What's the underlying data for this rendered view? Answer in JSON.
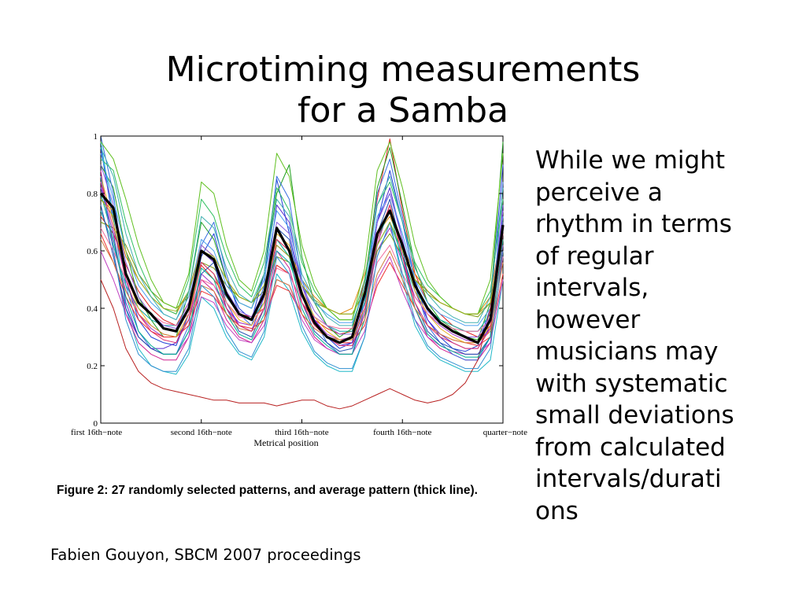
{
  "slide": {
    "title_lines": [
      "Microtiming measurements",
      "for a Samba"
    ],
    "body_lines": [
      "While we might",
      "perceive a",
      "rhythm in terms",
      "of regular",
      "intervals,",
      "however",
      "musicians may",
      "with systematic",
      "small deviations",
      "from calculated",
      "intervals/durati",
      "ons"
    ],
    "credit": "Fabien Gouyon, SBCM 2007 proceedings"
  },
  "figure": {
    "caption": "Figure 2: 27 randomly selected patterns, and average pattern (thick line)."
  },
  "chart_data": {
    "type": "line",
    "title": "",
    "xlabel": "Metrical position",
    "ylabel": "",
    "ylim": [
      0,
      1
    ],
    "xlim": [
      0,
      16
    ],
    "grid": false,
    "legend": "none",
    "y_ticks": [
      "0",
      "0.2",
      "0.4",
      "0.6",
      "0.8",
      "1"
    ],
    "x_ticks": [
      {
        "x": 0,
        "label": "first 16th−note"
      },
      {
        "x": 4,
        "label": "second  16th−note"
      },
      {
        "x": 8,
        "label": "third  16th−note"
      },
      {
        "x": 12,
        "label": "fourth  16th−note"
      },
      {
        "x": 16,
        "label": "quarter−note"
      }
    ],
    "x": [
      0,
      0.5,
      1,
      1.5,
      2,
      2.5,
      3,
      3.5,
      4,
      4.5,
      5,
      5.5,
      6,
      6.5,
      7,
      7.5,
      8,
      8.5,
      9,
      9.5,
      10,
      10.5,
      11,
      11.5,
      12,
      12.5,
      13,
      13.5,
      14,
      14.5,
      15,
      15.5,
      16
    ],
    "average": {
      "color": "#000000",
      "values": [
        0.8,
        0.75,
        0.52,
        0.42,
        0.38,
        0.33,
        0.32,
        0.4,
        0.6,
        0.57,
        0.45,
        0.38,
        0.36,
        0.45,
        0.68,
        0.6,
        0.45,
        0.35,
        0.3,
        0.28,
        0.3,
        0.45,
        0.66,
        0.74,
        0.62,
        0.48,
        0.4,
        0.35,
        0.32,
        0.3,
        0.28,
        0.36,
        0.69
      ]
    },
    "series": [
      {
        "color": "#1f3fd6",
        "values": [
          0.96,
          0.7,
          0.5,
          0.36,
          0.3,
          0.28,
          0.27,
          0.38,
          0.58,
          0.66,
          0.5,
          0.4,
          0.36,
          0.52,
          0.85,
          0.66,
          0.45,
          0.35,
          0.3,
          0.26,
          0.28,
          0.42,
          0.7,
          0.88,
          0.7,
          0.5,
          0.36,
          0.3,
          0.26,
          0.25,
          0.27,
          0.4,
          0.9
        ]
      },
      {
        "color": "#e02020",
        "values": [
          0.72,
          0.66,
          0.55,
          0.46,
          0.4,
          0.36,
          0.34,
          0.42,
          0.55,
          0.5,
          0.44,
          0.38,
          0.37,
          0.4,
          0.55,
          0.52,
          0.42,
          0.36,
          0.33,
          0.31,
          0.32,
          0.5,
          0.78,
          0.99,
          0.74,
          0.52,
          0.42,
          0.38,
          0.34,
          0.32,
          0.3,
          0.34,
          0.6
        ]
      },
      {
        "color": "#22a022",
        "values": [
          0.9,
          0.82,
          0.6,
          0.44,
          0.36,
          0.3,
          0.3,
          0.46,
          0.7,
          0.64,
          0.5,
          0.42,
          0.4,
          0.52,
          0.8,
          0.9,
          0.58,
          0.42,
          0.34,
          0.3,
          0.33,
          0.48,
          0.82,
          0.96,
          0.76,
          0.55,
          0.42,
          0.36,
          0.33,
          0.3,
          0.29,
          0.42,
          0.98
        ]
      },
      {
        "color": "#9b30c8",
        "values": [
          0.84,
          0.62,
          0.46,
          0.38,
          0.33,
          0.3,
          0.3,
          0.36,
          0.52,
          0.48,
          0.4,
          0.35,
          0.34,
          0.42,
          0.62,
          0.58,
          0.44,
          0.36,
          0.31,
          0.29,
          0.3,
          0.4,
          0.6,
          0.68,
          0.56,
          0.44,
          0.38,
          0.34,
          0.31,
          0.29,
          0.28,
          0.33,
          0.62
        ]
      },
      {
        "color": "#20b8c8",
        "values": [
          0.98,
          0.72,
          0.4,
          0.26,
          0.2,
          0.18,
          0.17,
          0.24,
          0.44,
          0.4,
          0.3,
          0.24,
          0.22,
          0.3,
          0.52,
          0.46,
          0.32,
          0.24,
          0.2,
          0.18,
          0.18,
          0.3,
          0.58,
          0.7,
          0.5,
          0.34,
          0.26,
          0.22,
          0.2,
          0.18,
          0.18,
          0.22,
          0.5
        ]
      },
      {
        "color": "#e08a10",
        "values": [
          0.78,
          0.74,
          0.58,
          0.5,
          0.44,
          0.4,
          0.38,
          0.46,
          0.62,
          0.58,
          0.5,
          0.44,
          0.42,
          0.48,
          0.64,
          0.6,
          0.5,
          0.44,
          0.4,
          0.38,
          0.4,
          0.52,
          0.66,
          0.72,
          0.62,
          0.52,
          0.46,
          0.42,
          0.4,
          0.38,
          0.38,
          0.44,
          0.7
        ]
      },
      {
        "color": "#d02090",
        "values": [
          0.88,
          0.6,
          0.38,
          0.28,
          0.24,
          0.22,
          0.22,
          0.3,
          0.5,
          0.46,
          0.36,
          0.3,
          0.28,
          0.36,
          0.6,
          0.54,
          0.38,
          0.3,
          0.26,
          0.24,
          0.24,
          0.36,
          0.62,
          0.76,
          0.58,
          0.4,
          0.3,
          0.26,
          0.24,
          0.22,
          0.22,
          0.28,
          0.58
        ]
      },
      {
        "color": "#7a9a10",
        "values": [
          0.7,
          0.68,
          0.62,
          0.52,
          0.46,
          0.42,
          0.4,
          0.44,
          0.56,
          0.54,
          0.48,
          0.44,
          0.42,
          0.46,
          0.58,
          0.56,
          0.48,
          0.42,
          0.4,
          0.38,
          0.38,
          0.46,
          0.6,
          0.66,
          0.58,
          0.5,
          0.46,
          0.42,
          0.4,
          0.38,
          0.37,
          0.42,
          0.64
        ]
      },
      {
        "color": "#3a70e0",
        "values": [
          1.0,
          0.8,
          0.48,
          0.32,
          0.26,
          0.24,
          0.24,
          0.34,
          0.62,
          0.7,
          0.52,
          0.38,
          0.34,
          0.48,
          0.86,
          0.78,
          0.5,
          0.36,
          0.28,
          0.24,
          0.24,
          0.4,
          0.8,
          0.92,
          0.72,
          0.48,
          0.34,
          0.28,
          0.24,
          0.22,
          0.22,
          0.3,
          0.84
        ]
      },
      {
        "color": "#f03030",
        "values": [
          0.66,
          0.56,
          0.44,
          0.36,
          0.32,
          0.3,
          0.3,
          0.34,
          0.46,
          0.44,
          0.38,
          0.34,
          0.33,
          0.36,
          0.48,
          0.46,
          0.38,
          0.33,
          0.3,
          0.28,
          0.28,
          0.34,
          0.48,
          0.56,
          0.48,
          0.4,
          0.34,
          0.31,
          0.29,
          0.28,
          0.27,
          0.3,
          0.52
        ]
      },
      {
        "color": "#30c060",
        "values": [
          0.92,
          0.88,
          0.7,
          0.56,
          0.46,
          0.4,
          0.38,
          0.5,
          0.78,
          0.72,
          0.58,
          0.48,
          0.44,
          0.56,
          0.82,
          0.74,
          0.56,
          0.46,
          0.4,
          0.36,
          0.36,
          0.5,
          0.76,
          0.84,
          0.7,
          0.56,
          0.48,
          0.44,
          0.4,
          0.38,
          0.38,
          0.46,
          0.78
        ]
      },
      {
        "color": "#5a2ad0",
        "values": [
          0.82,
          0.66,
          0.42,
          0.3,
          0.26,
          0.26,
          0.28,
          0.38,
          0.6,
          0.56,
          0.42,
          0.34,
          0.32,
          0.44,
          0.76,
          0.7,
          0.48,
          0.36,
          0.3,
          0.27,
          0.28,
          0.4,
          0.7,
          0.82,
          0.64,
          0.46,
          0.36,
          0.31,
          0.28,
          0.26,
          0.26,
          0.34,
          0.76
        ]
      },
      {
        "color": "#10a8a8",
        "values": [
          0.74,
          0.62,
          0.48,
          0.4,
          0.36,
          0.34,
          0.34,
          0.4,
          0.56,
          0.52,
          0.44,
          0.38,
          0.36,
          0.42,
          0.6,
          0.56,
          0.44,
          0.37,
          0.34,
          0.32,
          0.32,
          0.42,
          0.62,
          0.7,
          0.58,
          0.46,
          0.4,
          0.36,
          0.34,
          0.32,
          0.32,
          0.38,
          0.66
        ]
      },
      {
        "color": "#e8b020",
        "values": [
          0.86,
          0.7,
          0.52,
          0.4,
          0.34,
          0.31,
          0.3,
          0.38,
          0.56,
          0.52,
          0.42,
          0.36,
          0.34,
          0.42,
          0.66,
          0.62,
          0.46,
          0.37,
          0.32,
          0.29,
          0.29,
          0.4,
          0.64,
          0.76,
          0.62,
          0.46,
          0.38,
          0.33,
          0.3,
          0.28,
          0.28,
          0.34,
          0.68
        ]
      },
      {
        "color": "#c040c0",
        "values": [
          0.6,
          0.5,
          0.38,
          0.3,
          0.26,
          0.24,
          0.24,
          0.3,
          0.44,
          0.42,
          0.34,
          0.29,
          0.28,
          0.34,
          0.5,
          0.48,
          0.36,
          0.29,
          0.26,
          0.24,
          0.24,
          0.32,
          0.5,
          0.58,
          0.46,
          0.36,
          0.3,
          0.27,
          0.25,
          0.24,
          0.24,
          0.28,
          0.5
        ]
      },
      {
        "color": "#4aa0f0",
        "values": [
          0.94,
          0.78,
          0.6,
          0.48,
          0.42,
          0.38,
          0.36,
          0.44,
          0.64,
          0.6,
          0.48,
          0.42,
          0.4,
          0.5,
          0.74,
          0.68,
          0.5,
          0.42,
          0.38,
          0.35,
          0.35,
          0.46,
          0.72,
          0.8,
          0.66,
          0.5,
          0.42,
          0.38,
          0.36,
          0.34,
          0.34,
          0.4,
          0.72
        ]
      },
      {
        "color": "#b82020",
        "values": [
          0.5,
          0.4,
          0.26,
          0.18,
          0.14,
          0.12,
          0.11,
          0.1,
          0.09,
          0.08,
          0.08,
          0.07,
          0.07,
          0.07,
          0.06,
          0.07,
          0.08,
          0.08,
          0.06,
          0.05,
          0.06,
          0.08,
          0.1,
          0.12,
          0.1,
          0.08,
          0.07,
          0.08,
          0.1,
          0.14,
          0.22,
          0.4,
          0.7
        ]
      },
      {
        "color": "#60c020",
        "values": [
          0.98,
          0.92,
          0.78,
          0.62,
          0.5,
          0.42,
          0.4,
          0.52,
          0.84,
          0.8,
          0.62,
          0.5,
          0.46,
          0.6,
          0.94,
          0.86,
          0.62,
          0.48,
          0.4,
          0.36,
          0.36,
          0.54,
          0.88,
          0.98,
          0.82,
          0.62,
          0.5,
          0.44,
          0.4,
          0.38,
          0.38,
          0.5,
          0.94
        ]
      },
      {
        "color": "#2050b0",
        "values": [
          0.76,
          0.58,
          0.4,
          0.3,
          0.26,
          0.24,
          0.24,
          0.32,
          0.52,
          0.56,
          0.4,
          0.32,
          0.3,
          0.4,
          0.68,
          0.64,
          0.42,
          0.32,
          0.28,
          0.25,
          0.26,
          0.38,
          0.66,
          0.78,
          0.6,
          0.42,
          0.32,
          0.28,
          0.26,
          0.24,
          0.24,
          0.3,
          0.7
        ]
      },
      {
        "color": "#f070a0",
        "values": [
          0.68,
          0.6,
          0.5,
          0.42,
          0.38,
          0.35,
          0.34,
          0.38,
          0.5,
          0.48,
          0.42,
          0.37,
          0.36,
          0.4,
          0.54,
          0.52,
          0.42,
          0.37,
          0.34,
          0.33,
          0.33,
          0.4,
          0.56,
          0.62,
          0.52,
          0.44,
          0.38,
          0.35,
          0.33,
          0.32,
          0.32,
          0.36,
          0.58
        ]
      },
      {
        "color": "#00b090",
        "values": [
          0.8,
          0.64,
          0.44,
          0.32,
          0.27,
          0.24,
          0.24,
          0.32,
          0.54,
          0.5,
          0.38,
          0.31,
          0.29,
          0.38,
          0.64,
          0.58,
          0.4,
          0.31,
          0.27,
          0.24,
          0.24,
          0.36,
          0.64,
          0.74,
          0.56,
          0.4,
          0.31,
          0.27,
          0.25,
          0.23,
          0.23,
          0.3,
          0.64
        ]
      },
      {
        "color": "#8a60e0",
        "values": [
          0.9,
          0.76,
          0.56,
          0.44,
          0.38,
          0.34,
          0.33,
          0.42,
          0.62,
          0.58,
          0.46,
          0.39,
          0.37,
          0.46,
          0.7,
          0.66,
          0.48,
          0.39,
          0.34,
          0.31,
          0.31,
          0.44,
          0.7,
          0.8,
          0.64,
          0.48,
          0.39,
          0.35,
          0.32,
          0.3,
          0.3,
          0.37,
          0.74
        ]
      },
      {
        "color": "#d08040",
        "values": [
          0.64,
          0.56,
          0.46,
          0.38,
          0.34,
          0.31,
          0.3,
          0.36,
          0.48,
          0.46,
          0.38,
          0.33,
          0.32,
          0.36,
          0.5,
          0.48,
          0.38,
          0.33,
          0.3,
          0.29,
          0.29,
          0.36,
          0.52,
          0.6,
          0.5,
          0.4,
          0.34,
          0.31,
          0.29,
          0.28,
          0.28,
          0.32,
          0.56
        ]
      },
      {
        "color": "#3090d0",
        "values": [
          0.86,
          0.6,
          0.36,
          0.24,
          0.2,
          0.18,
          0.18,
          0.26,
          0.48,
          0.44,
          0.32,
          0.25,
          0.23,
          0.32,
          0.58,
          0.52,
          0.34,
          0.25,
          0.21,
          0.19,
          0.19,
          0.3,
          0.58,
          0.7,
          0.52,
          0.36,
          0.27,
          0.23,
          0.21,
          0.19,
          0.19,
          0.26,
          0.6
        ]
      },
      {
        "color": "#a0b020",
        "values": [
          0.78,
          0.72,
          0.6,
          0.5,
          0.44,
          0.4,
          0.39,
          0.46,
          0.6,
          0.58,
          0.5,
          0.44,
          0.42,
          0.48,
          0.62,
          0.58,
          0.48,
          0.43,
          0.4,
          0.38,
          0.38,
          0.46,
          0.62,
          0.7,
          0.6,
          0.5,
          0.45,
          0.42,
          0.4,
          0.38,
          0.38,
          0.42,
          0.66
        ]
      },
      {
        "color": "#e03070",
        "values": [
          0.84,
          0.68,
          0.5,
          0.38,
          0.32,
          0.29,
          0.28,
          0.36,
          0.56,
          0.52,
          0.4,
          0.34,
          0.32,
          0.4,
          0.64,
          0.6,
          0.42,
          0.34,
          0.3,
          0.27,
          0.27,
          0.38,
          0.64,
          0.76,
          0.58,
          0.42,
          0.34,
          0.3,
          0.28,
          0.26,
          0.26,
          0.33,
          0.66
        ]
      },
      {
        "color": "#40b0b0",
        "values": [
          0.96,
          0.86,
          0.66,
          0.52,
          0.44,
          0.38,
          0.36,
          0.46,
          0.72,
          0.68,
          0.54,
          0.45,
          0.42,
          0.52,
          0.78,
          0.72,
          0.52,
          0.43,
          0.37,
          0.34,
          0.34,
          0.48,
          0.76,
          0.86,
          0.7,
          0.54,
          0.45,
          0.4,
          0.37,
          0.35,
          0.35,
          0.44,
          0.82
        ]
      }
    ]
  }
}
